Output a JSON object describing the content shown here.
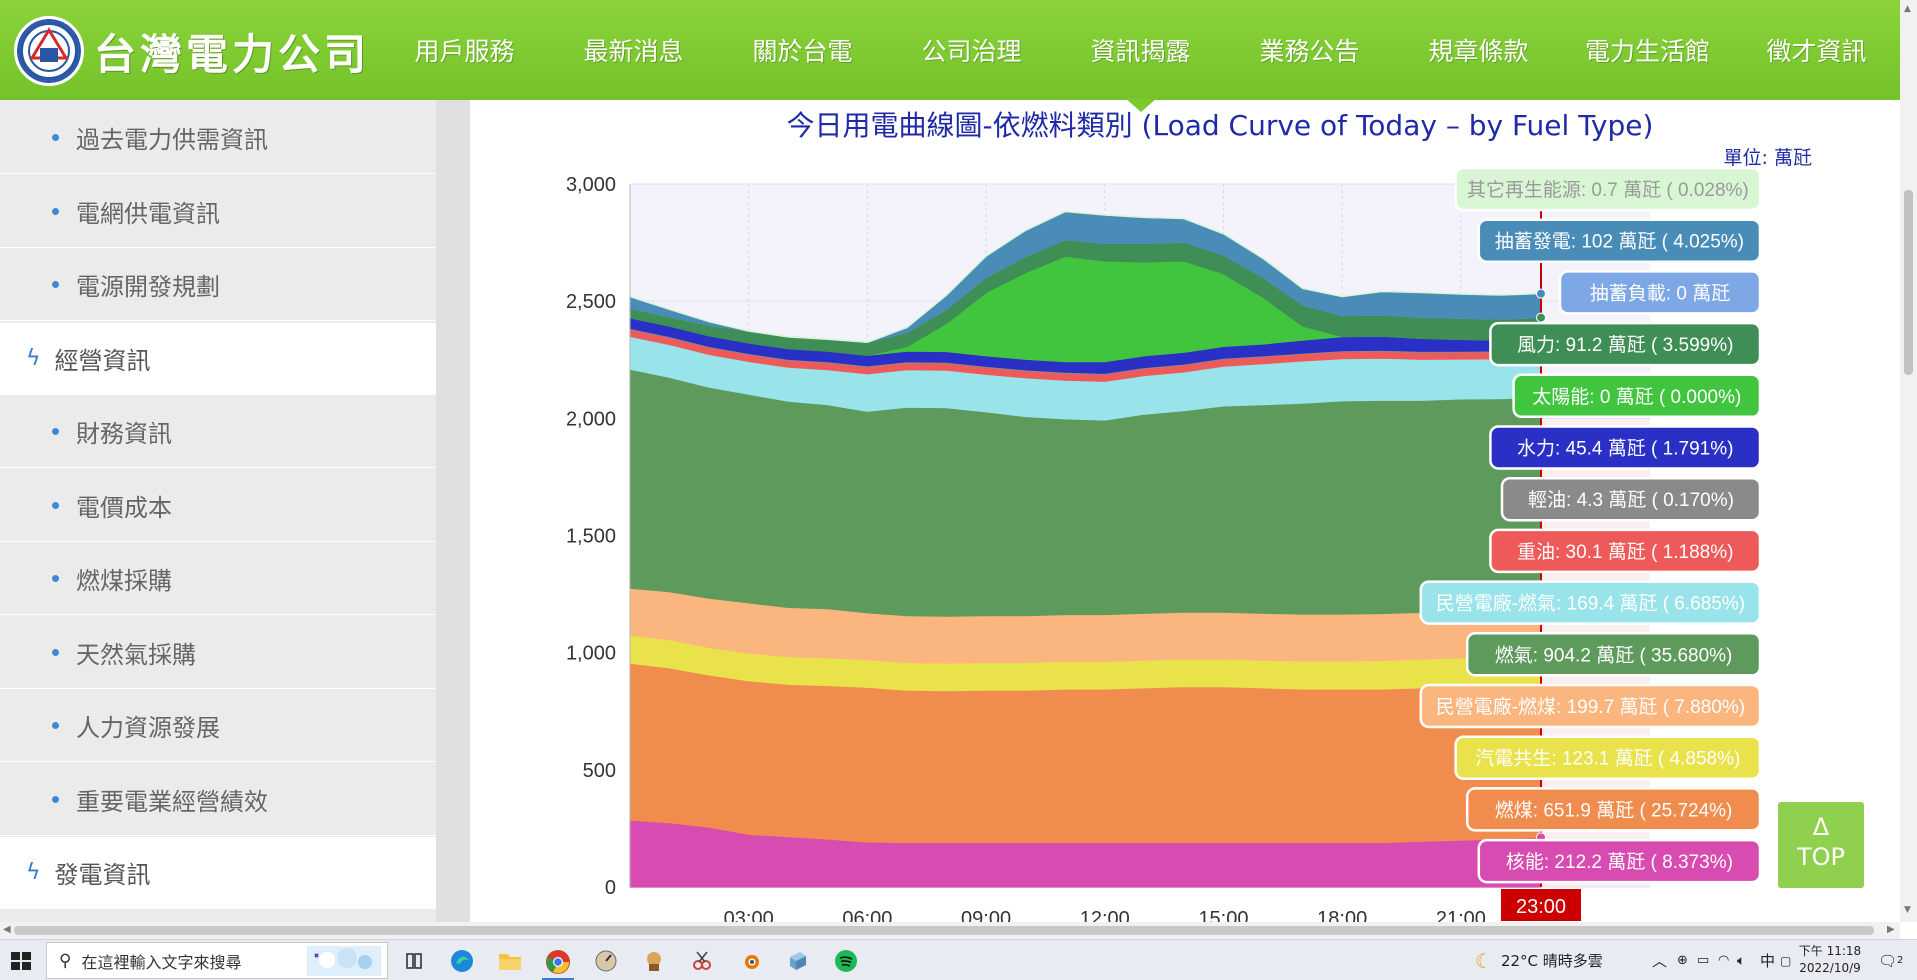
{
  "header": {
    "logo_text": "台灣電力公司",
    "nav": [
      {
        "label": "用戶服務"
      },
      {
        "label": "最新消息"
      },
      {
        "label": "關於台電"
      },
      {
        "label": "公司治理"
      },
      {
        "label": "資訊揭露",
        "active": true
      },
      {
        "label": "業務公告"
      },
      {
        "label": "規章條款"
      },
      {
        "label": "電力生活館"
      },
      {
        "label": "徵才資訊"
      }
    ]
  },
  "sidebar": {
    "items": [
      {
        "label": "過去電力供需資訊",
        "kind": "sub"
      },
      {
        "label": "電網供電資訊",
        "kind": "sub"
      },
      {
        "label": "電源開發規劃",
        "kind": "sub"
      },
      {
        "label": "經營資訊",
        "kind": "cat"
      },
      {
        "label": "財務資訊",
        "kind": "sub"
      },
      {
        "label": "電價成本",
        "kind": "sub"
      },
      {
        "label": "燃煤採購",
        "kind": "sub"
      },
      {
        "label": "天然氣採購",
        "kind": "sub"
      },
      {
        "label": "人力資源發展",
        "kind": "sub"
      },
      {
        "label": "重要電業經營績效",
        "kind": "sub"
      },
      {
        "label": "發電資訊",
        "kind": "cat"
      }
    ]
  },
  "chart_title": "今日用電曲線圖-依燃料類別 (Load Curve of Today – by Fuel Type)",
  "unit_label": "單位: 萬瓩",
  "top_button": {
    "arrow": "Δ",
    "label": "TOP"
  },
  "colors": {
    "brand_green": "#7cc82f",
    "title_blue": "#1f2aa8",
    "marker_red": "#cc0000"
  },
  "chart_data": {
    "type": "area",
    "stacked": true,
    "x": [
      "00:00",
      "01:00",
      "02:00",
      "03:00",
      "04:00",
      "05:00",
      "06:00",
      "07:00",
      "08:00",
      "09:00",
      "10:00",
      "11:00",
      "12:00",
      "13:00",
      "14:00",
      "15:00",
      "16:00",
      "17:00",
      "18:00",
      "19:00",
      "20:00",
      "21:00",
      "22:00",
      "23:00"
    ],
    "x_ticks": [
      "03:00",
      "06:00",
      "09:00",
      "12:00",
      "15:00",
      "18:00",
      "21:00"
    ],
    "current_time": "23:00",
    "ylim": [
      0,
      3000
    ],
    "y_ticks": [
      0,
      500,
      1000,
      1500,
      2000,
      2500,
      3000
    ],
    "y_tick_labels": [
      "0",
      "500",
      "1,000",
      "1,500",
      "2,000",
      "2,500",
      "3,000"
    ],
    "grid": true,
    "legend_position": "right",
    "series": [
      {
        "name": "核能",
        "color": "#d84bb0",
        "label": "核能: 212.2 萬瓩 ( 8.373%)",
        "values": [
          285,
          275,
          255,
          225,
          215,
          205,
          192,
          190,
          190,
          190,
          190,
          190,
          190,
          190,
          190,
          190,
          190,
          190,
          190,
          190,
          195,
          200,
          205,
          212
        ]
      },
      {
        "name": "燃煤",
        "color": "#ef8c4e",
        "label": "燃煤: 651.9 萬瓩 ( 25.724%)",
        "values": [
          670,
          660,
          650,
          655,
          650,
          655,
          660,
          650,
          648,
          650,
          650,
          655,
          655,
          660,
          665,
          665,
          660,
          655,
          655,
          655,
          655,
          655,
          652,
          652
        ]
      },
      {
        "name": "汽電共生",
        "color": "#eae24a",
        "label": "汽電共生: 123.1 萬瓩 ( 4.858%)",
        "values": [
          120,
          120,
          118,
          118,
          118,
          118,
          118,
          118,
          118,
          118,
          118,
          118,
          118,
          118,
          118,
          118,
          118,
          120,
          120,
          122,
          122,
          123,
          123,
          123
        ]
      },
      {
        "name": "民營電廠-燃煤",
        "color": "#fbb57e",
        "label": "民營電廠-燃煤: 199.7 萬瓩 ( 7.880%)",
        "values": [
          200,
          205,
          210,
          215,
          210,
          210,
          200,
          200,
          200,
          200,
          200,
          200,
          200,
          200,
          200,
          200,
          200,
          200,
          200,
          200,
          200,
          200,
          200,
          200
        ]
      },
      {
        "name": "燃氣",
        "color": "#5e9a5c",
        "label": "燃氣: 904.2 萬瓩 ( 35.680%)",
        "values": [
          935,
          915,
          900,
          890,
          880,
          870,
          860,
          890,
          890,
          870,
          850,
          835,
          830,
          850,
          860,
          880,
          890,
          900,
          910,
          910,
          905,
          905,
          904,
          904
        ]
      },
      {
        "name": "民營電廠-燃氣",
        "color": "#98e4ea",
        "label": "民營電廠-燃氣: 169.4 萬瓩 ( 6.685%)",
        "values": [
          140,
          140,
          140,
          140,
          145,
          150,
          160,
          160,
          160,
          160,
          165,
          165,
          165,
          165,
          165,
          170,
          175,
          180,
          180,
          180,
          175,
          170,
          170,
          169
        ]
      },
      {
        "name": "重油",
        "color": "#ee5a5a",
        "label": "重油: 30.1 萬瓩 ( 1.188%)",
        "values": [
          30,
          30,
          30,
          30,
          30,
          30,
          30,
          30,
          30,
          30,
          30,
          30,
          30,
          30,
          30,
          30,
          30,
          30,
          30,
          30,
          30,
          30,
          30,
          30
        ]
      },
      {
        "name": "輕油",
        "color": "#8a8a8a",
        "label": "輕油: 4.3 萬瓩 ( 0.170%)",
        "values": [
          4,
          4,
          4,
          4,
          4,
          4,
          4,
          4,
          4,
          4,
          4,
          4,
          4,
          4,
          4,
          4,
          4,
          4,
          4,
          4,
          4,
          4,
          4,
          4
        ]
      },
      {
        "name": "水力",
        "color": "#2a2fc5",
        "label": "水力: 45.4 萬瓩 ( 1.791%)",
        "values": [
          45,
          45,
          45,
          45,
          45,
          45,
          45,
          45,
          45,
          45,
          45,
          45,
          50,
          50,
          50,
          50,
          50,
          55,
          60,
          60,
          55,
          50,
          45,
          45
        ]
      },
      {
        "name": "太陽能",
        "color": "#41c43e",
        "label": "太陽能: 0 萬瓩 ( 0.000%)",
        "values": [
          0,
          0,
          0,
          0,
          0,
          0,
          0,
          20,
          120,
          270,
          370,
          450,
          430,
          400,
          390,
          310,
          200,
          60,
          0,
          0,
          0,
          0,
          0,
          0
        ]
      },
      {
        "name": "風力",
        "color": "#3e8e55",
        "label": "風力: 91.2 萬瓩 ( 3.599%)",
        "values": [
          40,
          40,
          45,
          50,
          50,
          50,
          55,
          60,
          60,
          65,
          70,
          70,
          75,
          80,
          80,
          80,
          85,
          90,
          90,
          90,
          90,
          90,
          91,
          91
        ]
      },
      {
        "name": "抽蓄負載",
        "color": "#7ea7e6",
        "label": "抽蓄負載: 0 萬瓩",
        "values": [
          0,
          0,
          0,
          0,
          0,
          0,
          0,
          0,
          0,
          0,
          0,
          0,
          0,
          0,
          0,
          0,
          0,
          0,
          0,
          0,
          0,
          0,
          0,
          0
        ]
      },
      {
        "name": "抽蓄發電",
        "color": "#4a8cb8",
        "label": "抽蓄發電: 102 萬瓩 ( 4.025%)",
        "values": [
          50,
          30,
          15,
          0,
          0,
          0,
          0,
          20,
          60,
          90,
          110,
          120,
          120,
          110,
          100,
          90,
          80,
          70,
          80,
          100,
          105,
          103,
          102,
          102
        ]
      },
      {
        "name": "其它再生能源",
        "color": "#d8f6d4",
        "label": "其它再生能源: 0.7 萬瓩 ( 0.028%)",
        "values": [
          1,
          1,
          1,
          1,
          1,
          1,
          1,
          1,
          1,
          1,
          1,
          1,
          1,
          1,
          1,
          1,
          1,
          1,
          1,
          1,
          1,
          1,
          1,
          1
        ]
      }
    ]
  },
  "taskbar": {
    "search_placeholder": "在這裡輸入文字來搜尋",
    "weather": "22°C  晴時多雲",
    "ime": "中",
    "time": "下午 11:18",
    "date": "2022/10/9",
    "notification_count": "2"
  }
}
